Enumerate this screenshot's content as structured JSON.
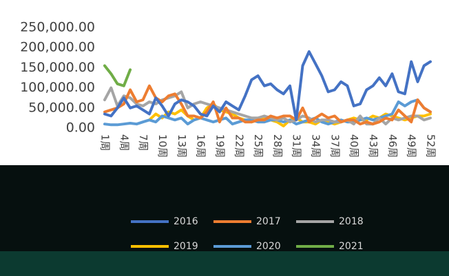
{
  "chart_data": {
    "type": "line",
    "categories": [
      "1周",
      null,
      null,
      "4周",
      null,
      null,
      "7周",
      null,
      null,
      "10周",
      null,
      null,
      "13周",
      null,
      null,
      "16周",
      null,
      null,
      "19周",
      null,
      null,
      "22周",
      null,
      null,
      "25周",
      null,
      null,
      "28周",
      null,
      null,
      "31周",
      null,
      null,
      "34周",
      null,
      null,
      "37周",
      null,
      null,
      "40周",
      null,
      null,
      "43周",
      null,
      null,
      "46周",
      null,
      null,
      "49周",
      null,
      null,
      "52周"
    ],
    "series": [
      {
        "name": "2016",
        "color": "#4472c4",
        "values": [
          35000,
          30000,
          50000,
          75000,
          50000,
          55000,
          45000,
          35000,
          75000,
          55000,
          30000,
          60000,
          70000,
          65000,
          55000,
          35000,
          30000,
          55000,
          40000,
          65000,
          55000,
          45000,
          80000,
          120000,
          130000,
          105000,
          110000,
          95000,
          85000,
          105000,
          20000,
          155000,
          190000,
          160000,
          130000,
          90000,
          95000,
          115000,
          105000,
          55000,
          60000,
          95000,
          105000,
          125000,
          105000,
          135000,
          90000,
          85000,
          165000,
          115000,
          155000,
          165000
        ]
      },
      {
        "name": "2017",
        "color": "#ed7d31",
        "values": [
          40000,
          45000,
          50000,
          60000,
          95000,
          65000,
          70000,
          105000,
          75000,
          65000,
          80000,
          85000,
          60000,
          30000,
          30000,
          25000,
          40000,
          65000,
          15000,
          50000,
          25000,
          25000,
          15000,
          15000,
          20000,
          20000,
          30000,
          25000,
          30000,
          30000,
          20000,
          50000,
          15000,
          25000,
          35000,
          25000,
          30000,
          15000,
          20000,
          20000,
          10000,
          15000,
          10000,
          15000,
          25000,
          20000,
          45000,
          30000,
          15000,
          70000,
          50000,
          40000
        ]
      },
      {
        "name": "2018",
        "color": "#a5a5a5",
        "values": [
          70000,
          100000,
          55000,
          80000,
          75000,
          60000,
          55000,
          65000,
          60000,
          70000,
          75000,
          80000,
          90000,
          50000,
          60000,
          65000,
          60000,
          55000,
          50000,
          45000,
          40000,
          35000,
          30000,
          25000,
          25000,
          30000,
          25000,
          20000,
          25000,
          15000,
          20000,
          30000,
          25000,
          15000,
          20000,
          20000,
          15000,
          15000,
          20000,
          10000,
          30000,
          10000,
          10000,
          25000,
          10000,
          25000,
          20000,
          25000,
          30000,
          30000,
          20000,
          25000
        ]
      },
      {
        "name": "2019",
        "color": "#ffc000",
        "values": [
          null,
          null,
          null,
          null,
          null,
          null,
          null,
          20000,
          35000,
          25000,
          40000,
          35000,
          45000,
          30000,
          20000,
          25000,
          50000,
          60000,
          45000,
          40000,
          35000,
          25000,
          20000,
          15000,
          20000,
          25000,
          20000,
          15000,
          5000,
          20000,
          25000,
          15000,
          15000,
          10000,
          20000,
          15000,
          10000,
          15000,
          20000,
          25000,
          20000,
          20000,
          30000,
          25000,
          35000,
          30000,
          25000,
          20000,
          25000,
          30000,
          30000,
          35000
        ]
      },
      {
        "name": "2020",
        "color": "#5b9bd5",
        "values": [
          10000,
          8000,
          8000,
          10000,
          12000,
          10000,
          15000,
          20000,
          15000,
          30000,
          25000,
          20000,
          25000,
          10000,
          20000,
          25000,
          20000,
          15000,
          20000,
          25000,
          10000,
          15000,
          20000,
          20000,
          15000,
          15000,
          20000,
          20000,
          15000,
          20000,
          10000,
          15000,
          20000,
          25000,
          15000,
          10000,
          15000,
          20000,
          15000,
          15000,
          20000,
          25000,
          20000,
          25000,
          30000,
          35000,
          65000,
          55000,
          65000,
          70000,
          50000,
          40000
        ]
      },
      {
        "name": "2021",
        "color": "#70ad47",
        "values": [
          155000,
          135000,
          110000,
          105000,
          145000,
          null,
          null,
          null,
          null,
          null,
          null,
          null,
          null,
          null,
          null,
          null,
          null,
          null,
          null,
          null,
          null,
          null,
          null,
          null,
          null,
          null,
          null,
          null,
          null,
          null,
          null,
          null,
          null,
          null,
          null,
          null,
          null,
          null,
          null,
          null,
          null,
          null,
          null,
          null,
          null,
          null,
          null,
          null,
          null,
          null,
          null,
          null
        ]
      }
    ],
    "ylim": [
      0,
      250000
    ],
    "yticks": [
      {
        "value": 0,
        "label": "0.00"
      },
      {
        "value": 50000,
        "label": "50,000.00"
      },
      {
        "value": 100000,
        "label": "100,000.00"
      },
      {
        "value": 150000,
        "label": "150,000.00"
      },
      {
        "value": 200000,
        "label": "200,000.00"
      },
      {
        "value": 250000,
        "label": "250,000.00"
      }
    ]
  }
}
